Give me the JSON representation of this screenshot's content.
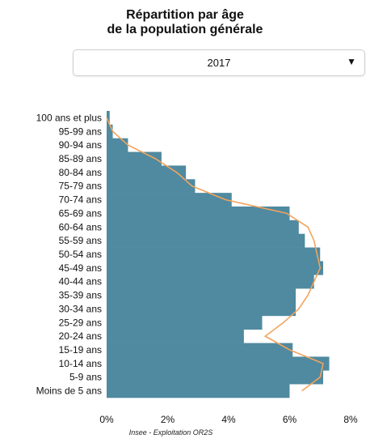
{
  "title_line1": "Répartition par âge",
  "title_line2": "de la population générale",
  "year_select": {
    "selected": "2017",
    "caret": "▼"
  },
  "source": "Insee - Exploitation OR2S",
  "colors": {
    "bar": "#4f8aa0",
    "line": "#f2a35c"
  },
  "chart_data": {
    "type": "bar",
    "orientation": "horizontal",
    "title": "Répartition par âge de la population générale",
    "categories": [
      "100 ans et plus",
      "95-99 ans",
      "90-94 ans",
      "85-89 ans",
      "80-84 ans",
      "75-79 ans",
      "70-74 ans",
      "65-69 ans",
      "60-64 ans",
      "55-59 ans",
      "50-54 ans",
      "45-49 ans",
      "40-44 ans",
      "35-39 ans",
      "30-34 ans",
      "25-29 ans",
      "20-24 ans",
      "15-19 ans",
      "10-14 ans",
      "5-9 ans",
      "Moins de 5 ans"
    ],
    "series": [
      {
        "type": "bar",
        "values": [
          0.1,
          0.2,
          0.7,
          1.8,
          2.6,
          2.9,
          4.1,
          6.0,
          6.3,
          6.5,
          7.0,
          7.1,
          6.8,
          6.2,
          6.2,
          5.1,
          4.5,
          6.1,
          7.3,
          7.1,
          6.0
        ]
      },
      {
        "type": "line",
        "values": [
          0.0,
          0.2,
          0.7,
          1.6,
          2.3,
          2.8,
          3.9,
          5.9,
          6.6,
          6.8,
          6.9,
          7.0,
          6.8,
          6.6,
          6.3,
          5.8,
          5.2,
          6.0,
          7.1,
          7.0,
          6.4
        ]
      }
    ],
    "xlim": [
      0,
      8
    ],
    "xticks": [
      "0%",
      "2%",
      "4%",
      "6%",
      "8%"
    ],
    "grid": false,
    "legend": "none"
  }
}
